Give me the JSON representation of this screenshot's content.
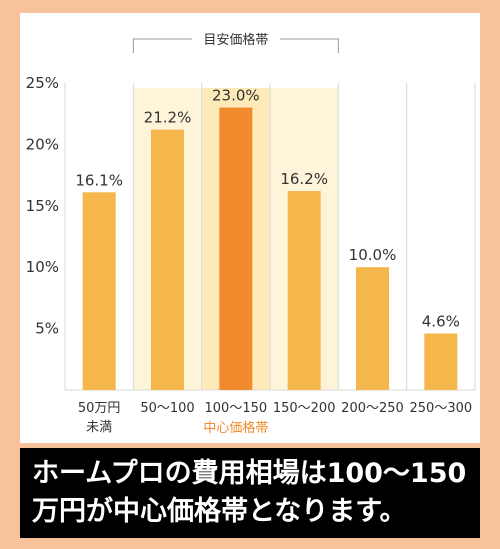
{
  "chart_data": {
    "type": "bar",
    "categories": [
      [
        "50万円",
        "未満"
      ],
      [
        "50〜100"
      ],
      [
        "100〜150"
      ],
      [
        "150〜200"
      ],
      [
        "200〜250"
      ],
      [
        "250〜300"
      ]
    ],
    "values": [
      16.1,
      21.2,
      23.0,
      16.2,
      10.0,
      4.6
    ],
    "value_labels": [
      "16.1%",
      "21.2%",
      "23.0%",
      "16.2%",
      "10.0%",
      "4.6%"
    ],
    "y_ticks": [
      5,
      10,
      15,
      20,
      25
    ],
    "y_tick_labels": [
      "5%",
      "10%",
      "15%",
      "20%",
      "25%"
    ],
    "ylim": [
      0,
      25
    ],
    "highlight_range_label": "目安価格帯",
    "highlight_range": [
      1,
      3
    ],
    "center_index": 2,
    "center_label": "中心価格帯",
    "colors": {
      "bar": "#f5b64b",
      "center_bar": "#f08a2c",
      "band": "#fef4da",
      "center_band": "#fdeab8",
      "center_label": "#f08a2c",
      "grid": "#d9d9d9",
      "text": "#333333"
    }
  },
  "caption": {
    "line1": "ホームプロの費用相場は100〜150",
    "line2": "万円が中心価格帯となります。"
  }
}
